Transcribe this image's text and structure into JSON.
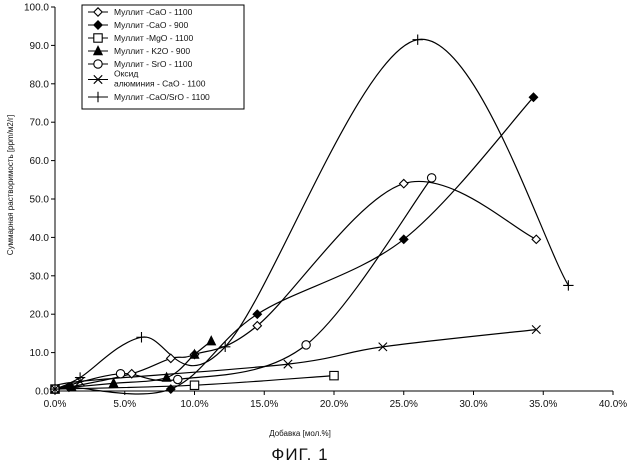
{
  "chart_data": {
    "type": "scatter",
    "title": "",
    "caption": "ФИГ. 1",
    "xlabel": "Добавка [мол.%]",
    "ylabel": "Суммарная растворимость [ppm/м2/г]",
    "xlim": [
      0,
      40
    ],
    "ylim": [
      0,
      100
    ],
    "x_ticks": [
      "0.0%",
      "5.0%",
      "10.0%",
      "15.0%",
      "20.0%",
      "25.0%",
      "30.0%",
      "35.0%",
      "40.0%"
    ],
    "y_ticks": [
      "0.0",
      "10.0",
      "20.0",
      "30.0",
      "40.0",
      "50.0",
      "60.0",
      "70.0",
      "80.0",
      "90.0",
      "100.0"
    ],
    "grid": false,
    "legend_position": "top-left",
    "series": [
      {
        "name": "Муллит -CaO - 1100",
        "marker": "diamond-open",
        "x": [
          0,
          1,
          5.5,
          8.3,
          10,
          14.5,
          25,
          34.5
        ],
        "y": [
          0.5,
          1,
          4.5,
          8.5,
          9.5,
          17,
          54,
          39.5
        ]
      },
      {
        "name": "Муллит -CaO - 900",
        "marker": "diamond-filled",
        "x": [
          0,
          1,
          8.3,
          14.5,
          25,
          34.3
        ],
        "y": [
          0.5,
          1,
          0.5,
          20,
          39.5,
          76.5
        ]
      },
      {
        "name": "Муллит -MgO - 1100",
        "marker": "square-open",
        "x": [
          0,
          10,
          20
        ],
        "y": [
          0.5,
          1.5,
          4
        ]
      },
      {
        "name": "Муллит - K2O - 900",
        "marker": "triangle-filled",
        "x": [
          0,
          1.2,
          4.2,
          8,
          10,
          11.2
        ],
        "y": [
          0.5,
          1,
          2,
          3.5,
          9.5,
          13
        ]
      },
      {
        "name": "Муллит - SrO - 1100",
        "marker": "circle-open",
        "x": [
          0,
          4.7,
          8.8,
          18,
          27
        ],
        "y": [
          0.5,
          4.5,
          3,
          12,
          55.5
        ]
      },
      {
        "name_line1": "Оксид",
        "name_line2": "алюминия - CaO - 1100",
        "marker": "x",
        "x": [
          0,
          1.8,
          16.7,
          23.5,
          34.5
        ],
        "y": [
          0.5,
          2.5,
          7,
          11.5,
          16
        ]
      },
      {
        "name": "Муллит -CaO/SrO - 1100",
        "marker": "plus",
        "x": [
          0,
          1.8,
          6.2,
          12.2,
          26,
          36.8
        ],
        "y": [
          0.5,
          3.5,
          14,
          11.5,
          91.5,
          27.5
        ]
      }
    ]
  }
}
